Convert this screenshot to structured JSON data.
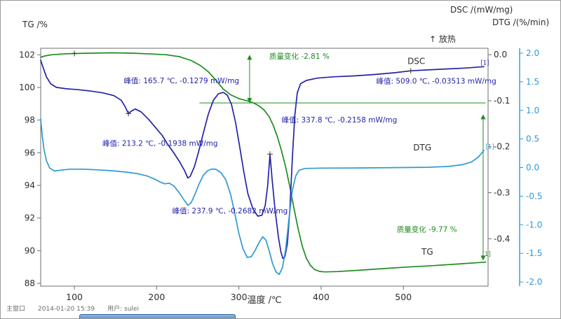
{
  "axis_titles": {
    "tg": "TG /%",
    "dsc": "DSC /(mW/mg)",
    "dtg": "DTG /(%/min)"
  },
  "exo_label": "↑ 放热",
  "footer": {
    "window_label": "主窗口",
    "timestamp": "2014-01-20 15:39",
    "user_label": "用户: sulei"
  },
  "chart_data": {
    "type": "line",
    "xlabel": "温度 /℃",
    "x_range": [
      59,
      603
    ],
    "x_ticks": [
      100,
      200,
      300,
      400,
      500
    ],
    "x_tick_labels": [
      "100",
      "200",
      "300",
      "400",
      "500"
    ],
    "axes": {
      "tg": {
        "title": "TG /%",
        "min": 87.83,
        "max": 102.4,
        "ticks": [
          88,
          90,
          92,
          94,
          96,
          98,
          100,
          102
        ],
        "tick_labels": [
          "88",
          "90",
          "92",
          "94",
          "96",
          "98",
          "100",
          "102"
        ],
        "color": "#2e2e2e"
      },
      "dsc": {
        "title": "DSC /(mW/mg)",
        "min": -0.503,
        "max": 0.014,
        "ticks": [
          0.0,
          -0.1,
          -0.2,
          -0.3,
          -0.4
        ],
        "tick_labels": [
          "0.0",
          "-0.1",
          "-0.2",
          "-0.3",
          "-0.4"
        ],
        "color": "#2e2e2e"
      },
      "dtg": {
        "title": "DTG /(%/min)",
        "min": -2.073,
        "max": 2.086,
        "ticks": [
          2.0,
          1.5,
          1.0,
          0.5,
          0.0,
          -0.5,
          -1.0,
          -1.5,
          -2.0
        ],
        "tick_labels": [
          "2.0",
          "1.5",
          "1.0",
          "0.5",
          "0.0",
          "-0.5",
          "-1.0",
          "-1.5",
          "-2.0"
        ],
        "color": "#2f99d3"
      }
    },
    "series": [
      {
        "name": "TG",
        "axis": "tg",
        "color": "#1e8c1e",
        "points": [
          [
            59,
            101.85
          ],
          [
            64,
            101.93
          ],
          [
            72,
            102.0
          ],
          [
            85,
            102.05
          ],
          [
            100,
            102.08
          ],
          [
            120,
            102.1
          ],
          [
            145,
            102.12
          ],
          [
            170,
            102.1
          ],
          [
            195,
            102.05
          ],
          [
            212,
            102.0
          ],
          [
            228,
            101.88
          ],
          [
            242,
            101.65
          ],
          [
            253,
            101.35
          ],
          [
            263,
            100.95
          ],
          [
            272,
            100.45
          ],
          [
            281,
            99.9
          ],
          [
            290,
            99.55
          ],
          [
            300,
            99.32
          ],
          [
            310,
            99.18
          ],
          [
            318,
            99.05
          ],
          [
            325,
            98.85
          ],
          [
            331,
            98.6
          ],
          [
            337,
            98.2
          ],
          [
            342,
            97.65
          ],
          [
            347,
            96.95
          ],
          [
            352,
            96.1
          ],
          [
            357,
            95.1
          ],
          [
            362,
            93.9
          ],
          [
            367,
            92.6
          ],
          [
            372,
            91.35
          ],
          [
            377,
            90.3
          ],
          [
            382,
            89.55
          ],
          [
            387,
            89.1
          ],
          [
            392,
            88.85
          ],
          [
            398,
            88.73
          ],
          [
            405,
            88.7
          ],
          [
            420,
            88.72
          ],
          [
            445,
            88.8
          ],
          [
            475,
            88.9
          ],
          [
            505,
            89.0
          ],
          [
            535,
            89.08
          ],
          [
            565,
            89.18
          ],
          [
            600,
            89.3
          ]
        ]
      },
      {
        "name": "DSC",
        "axis": "dsc",
        "color": "#2323a8",
        "points": [
          [
            59,
            -0.012
          ],
          [
            62,
            -0.028
          ],
          [
            66,
            -0.048
          ],
          [
            71,
            -0.063
          ],
          [
            78,
            -0.071
          ],
          [
            90,
            -0.074
          ],
          [
            105,
            -0.076
          ],
          [
            120,
            -0.079
          ],
          [
            135,
            -0.083
          ],
          [
            148,
            -0.089
          ],
          [
            157,
            -0.099
          ],
          [
            162,
            -0.114
          ],
          [
            165.7,
            -0.128
          ],
          [
            169,
            -0.123
          ],
          [
            174,
            -0.118
          ],
          [
            181,
            -0.124
          ],
          [
            190,
            -0.14
          ],
          [
            199,
            -0.159
          ],
          [
            207,
            -0.176
          ],
          [
            213.2,
            -0.194
          ],
          [
            220,
            -0.211
          ],
          [
            228,
            -0.233
          ],
          [
            234,
            -0.252
          ],
          [
            237.9,
            -0.268
          ],
          [
            241,
            -0.264
          ],
          [
            246,
            -0.243
          ],
          [
            251,
            -0.211
          ],
          [
            257,
            -0.169
          ],
          [
            263,
            -0.128
          ],
          [
            269,
            -0.099
          ],
          [
            275,
            -0.085
          ],
          [
            281,
            -0.082
          ],
          [
            286,
            -0.088
          ],
          [
            291,
            -0.108
          ],
          [
            296,
            -0.148
          ],
          [
            301,
            -0.2
          ],
          [
            306,
            -0.255
          ],
          [
            311,
            -0.302
          ],
          [
            317,
            -0.335
          ],
          [
            323,
            -0.351
          ],
          [
            328,
            -0.349
          ],
          [
            332,
            -0.328
          ],
          [
            335,
            -0.285
          ],
          [
            337.8,
            -0.216
          ],
          [
            340.5,
            -0.272
          ],
          [
            344,
            -0.337
          ],
          [
            348,
            -0.395
          ],
          [
            351,
            -0.428
          ],
          [
            353.5,
            -0.443
          ],
          [
            356,
            -0.439
          ],
          [
            359,
            -0.411
          ],
          [
            362,
            -0.335
          ],
          [
            365,
            -0.225
          ],
          [
            368,
            -0.132
          ],
          [
            371,
            -0.083
          ],
          [
            375,
            -0.063
          ],
          [
            382,
            -0.056
          ],
          [
            395,
            -0.051
          ],
          [
            415,
            -0.048
          ],
          [
            440,
            -0.046
          ],
          [
            465,
            -0.043
          ],
          [
            490,
            -0.039
          ],
          [
            509,
            -0.035
          ],
          [
            530,
            -0.033
          ],
          [
            552,
            -0.031
          ],
          [
            575,
            -0.029
          ],
          [
            598,
            -0.026
          ]
        ]
      },
      {
        "name": "DTG",
        "axis": "dtg",
        "color": "#2f99d3",
        "points": [
          [
            59,
            0.85
          ],
          [
            61,
            0.55
          ],
          [
            63,
            0.32
          ],
          [
            66,
            0.12
          ],
          [
            70,
            -0.01
          ],
          [
            76,
            -0.06
          ],
          [
            84,
            -0.045
          ],
          [
            95,
            -0.028
          ],
          [
            110,
            -0.028
          ],
          [
            128,
            -0.04
          ],
          [
            145,
            -0.055
          ],
          [
            162,
            -0.078
          ],
          [
            176,
            -0.105
          ],
          [
            188,
            -0.145
          ],
          [
            198,
            -0.205
          ],
          [
            205,
            -0.258
          ],
          [
            210,
            -0.285
          ],
          [
            215,
            -0.272
          ],
          [
            221,
            -0.32
          ],
          [
            227,
            -0.43
          ],
          [
            233,
            -0.56
          ],
          [
            237.9,
            -0.66
          ],
          [
            242,
            -0.615
          ],
          [
            247,
            -0.455
          ],
          [
            252,
            -0.275
          ],
          [
            257,
            -0.13
          ],
          [
            262,
            -0.055
          ],
          [
            267,
            -0.025
          ],
          [
            272,
            -0.03
          ],
          [
            278,
            -0.085
          ],
          [
            284,
            -0.21
          ],
          [
            290,
            -0.47
          ],
          [
            295,
            -0.8
          ],
          [
            300,
            -1.15
          ],
          [
            305,
            -1.42
          ],
          [
            310,
            -1.57
          ],
          [
            315,
            -1.56
          ],
          [
            320,
            -1.44
          ],
          [
            325,
            -1.3
          ],
          [
            329,
            -1.21
          ],
          [
            333,
            -1.27
          ],
          [
            337,
            -1.46
          ],
          [
            341,
            -1.68
          ],
          [
            345,
            -1.82
          ],
          [
            349,
            -1.87
          ],
          [
            353,
            -1.75
          ],
          [
            357,
            -1.42
          ],
          [
            361,
            -0.88
          ],
          [
            365,
            -0.4
          ],
          [
            369,
            -0.15
          ],
          [
            373,
            -0.05
          ],
          [
            380,
            -0.015
          ],
          [
            400,
            -0.01
          ],
          [
            430,
            -0.008
          ],
          [
            465,
            -0.005
          ],
          [
            500,
            0.0
          ],
          [
            530,
            0.005
          ],
          [
            555,
            0.02
          ],
          [
            572,
            0.05
          ],
          [
            583,
            0.1
          ],
          [
            591,
            0.18
          ],
          [
            598,
            0.3
          ]
        ]
      }
    ],
    "annotations": [
      {
        "text": "质量变化 -2.81 %",
        "t": 337,
        "axis": "tg",
        "v": 101.75,
        "color": "#1e8c1e"
      },
      {
        "text": "峰值: 165.7 ℃, -0.1279 mW/mg",
        "t": 160,
        "axis": "dsc",
        "v": -0.062,
        "color": "#2323a8"
      },
      {
        "text": "峰值: 509.0 ℃, -0.03513 mW/mg",
        "t": 467,
        "axis": "dsc",
        "v": -0.063,
        "color": "#2323a8"
      },
      {
        "text": "峰值: 337.8 ℃, -0.2158 mW/mg",
        "t": 352,
        "axis": "dsc",
        "v": -0.147,
        "color": "#2323a8"
      },
      {
        "text": "峰值: 213.2 ℃, -0.1938 mW/mg",
        "t": 134,
        "axis": "dsc",
        "v": -0.198,
        "color": "#2323a8"
      },
      {
        "text": "峰值: 237.9 ℃, -0.2682 mW/mg",
        "t": 219,
        "axis": "dsc",
        "v": -0.345,
        "color": "#2323a8"
      },
      {
        "text": "质量变化 -9.77 %",
        "t": 492,
        "axis": "tg",
        "v": 91.15,
        "color": "#1e8c1e"
      }
    ],
    "mass_change_arrows": [
      {
        "t": 313,
        "axis": "tg",
        "from": 102.0,
        "to": 99.05,
        "color": "#1e8c1e"
      },
      {
        "t": 597,
        "axis": "tg",
        "from": 98.35,
        "to": 89.4,
        "color": "#1e8c1e"
      }
    ],
    "reference_line": {
      "axis": "tg",
      "v": 99.05,
      "t_start": 252,
      "t_end": 600,
      "color": "#1e8c1e"
    },
    "peak_markers": [
      {
        "axis": "tg",
        "t": 100,
        "v": 102.08
      },
      {
        "axis": "dsc",
        "t": 165.7,
        "v": -0.128
      },
      {
        "axis": "dsc",
        "t": 337.8,
        "v": -0.216
      },
      {
        "axis": "dsc",
        "t": 509,
        "v": -0.035
      }
    ],
    "curve_labels": [
      {
        "text": "DSC",
        "t": 505,
        "axis": "dsc",
        "v": -0.02,
        "color": "#2e2e2e"
      },
      {
        "text": "DTG",
        "t": 512,
        "axis": "dtg",
        "v": 0.3,
        "color": "#2e2e2e"
      },
      {
        "text": "TG",
        "t": 522,
        "axis": "tg",
        "v": 89.75,
        "color": "#2e2e2e"
      }
    ],
    "end_markers": [
      {
        "label": "[1]",
        "axis": "dsc",
        "t": 594,
        "v": -0.022,
        "color": "#2323a8"
      },
      {
        "label": "[1]",
        "axis": "dtg",
        "t": 600,
        "v": 0.33,
        "color": "#2f99d3"
      },
      {
        "label": "[1]",
        "axis": "tg",
        "t": 596,
        "v": 89.67,
        "color": "#1e8c1e"
      }
    ]
  }
}
